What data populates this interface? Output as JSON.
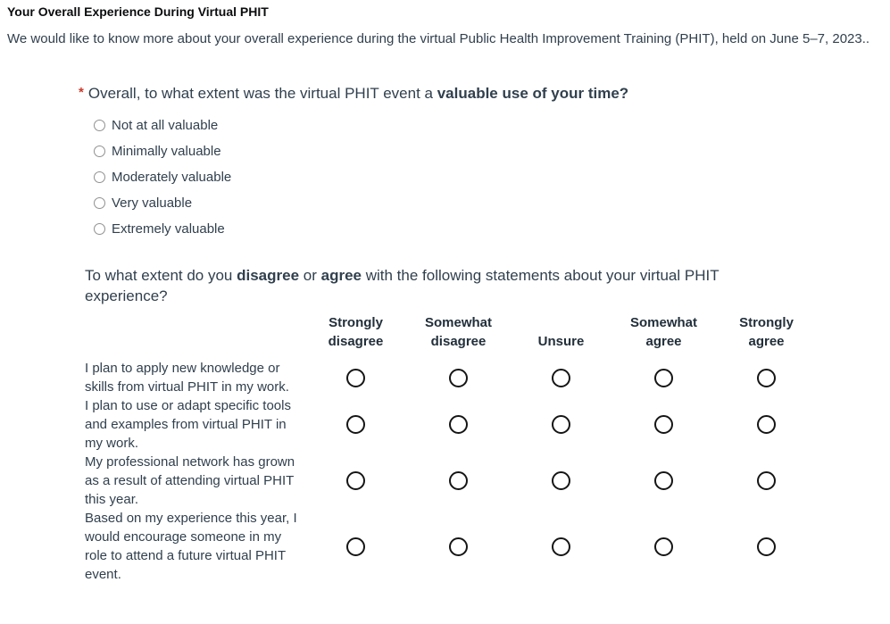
{
  "page": {
    "title": "Your Overall Experience During Virtual PHIT",
    "intro": "We would like to know more about your overall experience during the virtual Public Health Improvement Training (PHIT), held on June 5–7, 2023.."
  },
  "question1": {
    "required_marker": "*",
    "text_before": "Overall, to what extent was the virtual PHIT event a ",
    "text_bold": "valuable use of your time?",
    "options": [
      "Not at all valuable",
      "Minimally valuable",
      "Moderately valuable",
      "Very valuable",
      "Extremely valuable"
    ]
  },
  "question2": {
    "text_part1": "To what extent do you ",
    "bold1": "disagree",
    "text_part2": " or ",
    "bold2": "agree",
    "text_part3": " with the following statements about your virtual PHIT experience?",
    "columns": [
      "Strongly disagree",
      "Somewhat disagree",
      "Unsure",
      "Somewhat agree",
      "Strongly agree"
    ],
    "rows": [
      "I plan to apply new knowledge or skills from virtual PHIT in my work.",
      "I plan to use or adapt specific tools and examples from virtual PHIT in my work.",
      "My professional network has grown as a result of attending virtual PHIT this year.",
      "Based on my experience this year, I would encourage someone in my role to attend a future virtual PHIT event."
    ]
  },
  "colors": {
    "background": "#ffffff",
    "title_text": "#0b0c0e",
    "body_text": "#31404e",
    "required_asterisk": "#cb3a2b",
    "matrix_header_text": "#222f3a",
    "matrix_radio_border": "#151515",
    "small_radio_border": "#919191"
  }
}
